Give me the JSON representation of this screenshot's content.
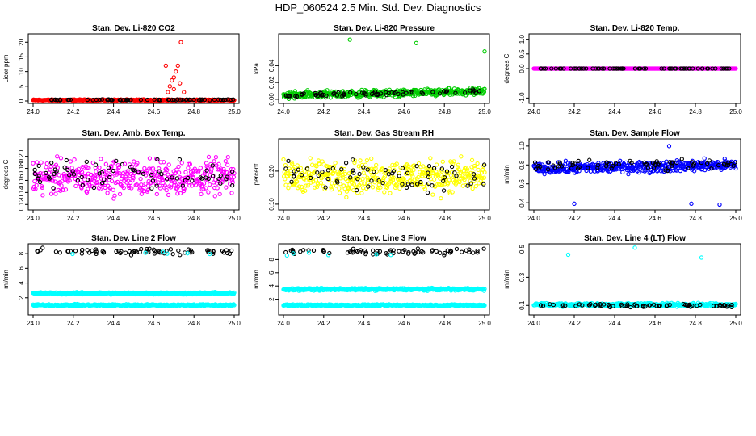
{
  "title": "HDP_060524  2.5 Min. Std. Dev. Diagnostics",
  "colors": {
    "black": "#000000",
    "red": "#ff0000",
    "green": "#00cc00",
    "magenta": "#ff00ff",
    "yellow": "#ffff00",
    "blue": "#0000ff",
    "cyan": "#00ffff"
  },
  "chart_data": [
    {
      "type": "scatter",
      "title": "Stan. Dev. Li-820 CO2",
      "ylabel": "Licor ppm",
      "xlim": [
        24.0,
        25.0
      ],
      "ylim": [
        0,
        22
      ],
      "xticks": [
        "24.0",
        "24.2",
        "24.4",
        "24.6",
        "24.8",
        "25.0"
      ],
      "yticks": [
        0,
        5,
        10,
        15,
        20
      ],
      "ytick_labels": [
        "0",
        "5",
        "10",
        "15",
        "20"
      ],
      "series": [
        {
          "color": "red",
          "base": 0.3,
          "noise": 0.15,
          "outliers": [
            [
              24.67,
              3
            ],
            [
              24.68,
              5
            ],
            [
              24.69,
              7
            ],
            [
              24.7,
              8
            ],
            [
              24.71,
              10
            ],
            [
              24.72,
              12
            ],
            [
              24.73,
              6
            ],
            [
              24.735,
              20
            ],
            [
              24.7,
              4
            ],
            [
              24.75,
              3
            ],
            [
              24.66,
              12
            ]
          ]
        },
        {
          "color": "black",
          "base": 0.4,
          "noise": 0.1,
          "sparse": true
        }
      ]
    },
    {
      "type": "scatter",
      "title": "Stan. Dev. Li-820 Pressure",
      "ylabel": "kPa",
      "xlim": [
        24.0,
        25.0
      ],
      "ylim": [
        -0.002,
        0.075
      ],
      "xticks": [
        "24.0",
        "24.2",
        "24.4",
        "24.6",
        "24.8",
        "25.0"
      ],
      "yticks": [
        0,
        0.02,
        0.04
      ],
      "ytick_labels": [
        "0.00",
        "0.02",
        "0.04"
      ],
      "series": [
        {
          "color": "green",
          "base": 0.005,
          "noise": 0.003,
          "trend": 0.004,
          "outliers": [
            [
              24.33,
              0.071
            ],
            [
              24.66,
              0.067
            ],
            [
              25.0,
              0.057
            ]
          ]
        },
        {
          "color": "black",
          "base": 0.005,
          "noise": 0.002,
          "trend": 0.004,
          "sparse": true
        }
      ]
    },
    {
      "type": "scatter",
      "title": "Stan. Dev. Li-820 Temp.",
      "ylabel": "degrees C",
      "xlim": [
        24.0,
        25.0
      ],
      "ylim": [
        -1.1,
        1.1
      ],
      "xticks": [
        "24.0",
        "24.2",
        "24.4",
        "24.6",
        "24.8",
        "25.0"
      ],
      "yticks": [
        -1,
        0,
        0.5,
        1
      ],
      "ytick_labels": [
        "-1.0",
        "0.0",
        "0.5",
        "1.0"
      ],
      "series": [
        {
          "color": "magenta",
          "base": 0,
          "noise": 0
        },
        {
          "color": "black",
          "base": 0,
          "noise": 0,
          "sparse": true
        }
      ]
    },
    {
      "type": "scatter",
      "title": "Stan. Dev. Amb. Box Temp.",
      "ylabel": "degrees C",
      "xlim": [
        24.0,
        25.0
      ],
      "ylim": [
        0.115,
        0.225
      ],
      "xticks": [
        "24.0",
        "24.2",
        "24.4",
        "24.6",
        "24.8",
        "25.0"
      ],
      "yticks": [
        0.12,
        0.14,
        0.16,
        0.18,
        0.2
      ],
      "ytick_labels": [
        "0.12",
        "0.14",
        "0.16",
        "0.18",
        "0.20"
      ],
      "series": [
        {
          "color": "magenta",
          "base": 0.165,
          "noise": 0.02
        },
        {
          "color": "black",
          "base": 0.17,
          "noise": 0.015,
          "sparse": true
        }
      ]
    },
    {
      "type": "scatter",
      "title": "Stan. Dev. Gas Stream RH",
      "ylabel": "percent",
      "xlim": [
        24.0,
        25.0
      ],
      "ylim": [
        0.09,
        0.29
      ],
      "xticks": [
        "24.0",
        "24.2",
        "24.4",
        "24.6",
        "24.8",
        "25.0"
      ],
      "yticks": [
        0.1,
        0.2
      ],
      "ytick_labels": [
        "0.10",
        "0.20"
      ],
      "series": [
        {
          "color": "yellow",
          "base": 0.185,
          "noise": 0.035
        },
        {
          "color": "black",
          "base": 0.18,
          "noise": 0.03,
          "sparse": true
        }
      ]
    },
    {
      "type": "scatter",
      "title": "Stan. Dev. Sample Flow",
      "ylabel": "ml/min",
      "xlim": [
        24.0,
        25.0
      ],
      "ylim": [
        0.35,
        1.05
      ],
      "xticks": [
        "24.0",
        "24.2",
        "24.4",
        "24.6",
        "24.8",
        "25.0"
      ],
      "yticks": [
        0.4,
        0.6,
        0.8,
        1.0
      ],
      "ytick_labels": [
        "0.4",
        "0.6",
        "0.8",
        "1.0"
      ],
      "series": [
        {
          "color": "blue",
          "base": 0.76,
          "noise": 0.04,
          "trend": 0.04,
          "outliers": [
            [
              24.2,
              0.39
            ],
            [
              24.67,
              1.0
            ],
            [
              24.78,
              0.39
            ],
            [
              24.92,
              0.38
            ]
          ]
        },
        {
          "color": "black",
          "base": 0.79,
          "noise": 0.04,
          "trend": 0.03,
          "sparse": true
        }
      ]
    },
    {
      "type": "scatter",
      "title": "Stan. Dev. Line 2 Flow",
      "ylabel": "ml/min",
      "xlim": [
        24.0,
        25.0
      ],
      "ylim": [
        0,
        9
      ],
      "xticks": [
        "24.0",
        "24.2",
        "24.4",
        "24.6",
        "24.8",
        "25.0"
      ],
      "yticks": [
        2,
        4,
        6,
        8
      ],
      "ytick_labels": [
        "2",
        "4",
        "6",
        "8"
      ],
      "series": [
        {
          "color": "cyan",
          "base": 2.6,
          "noise": 0.1
        },
        {
          "color": "cyan",
          "base": 1.0,
          "noise": 0.08
        },
        {
          "color": "black",
          "base": 8.3,
          "noise": 0.3,
          "sparse": true
        },
        {
          "color": "cyan",
          "base": 8.0,
          "noise": 0.3,
          "sparse": true,
          "few": true
        }
      ]
    },
    {
      "type": "scatter",
      "title": "Stan. Dev. Line 3 Flow",
      "ylabel": "ml/min",
      "xlim": [
        24.0,
        25.0
      ],
      "ylim": [
        0,
        10
      ],
      "xticks": [
        "24.0",
        "24.2",
        "24.4",
        "24.6",
        "24.8",
        "25.0"
      ],
      "yticks": [
        2,
        4,
        6,
        8
      ],
      "ytick_labels": [
        "2",
        "4",
        "6",
        "8"
      ],
      "series": [
        {
          "color": "cyan",
          "base": 3.5,
          "noise": 0.12
        },
        {
          "color": "cyan",
          "base": 1.1,
          "noise": 0.08
        },
        {
          "color": "black",
          "base": 9.2,
          "noise": 0.35,
          "sparse": true
        },
        {
          "color": "cyan",
          "base": 8.8,
          "noise": 0.3,
          "sparse": true,
          "few": true
        }
      ]
    },
    {
      "type": "scatter",
      "title": "Stan. Dev. Line 4 (LT) Flow",
      "ylabel": "ml/min",
      "xlim": [
        24.0,
        25.0
      ],
      "ylim": [
        0.05,
        0.52
      ],
      "xticks": [
        "24.0",
        "24.2",
        "24.4",
        "24.6",
        "24.8",
        "25.0"
      ],
      "yticks": [
        0.1,
        0.3,
        0.5
      ],
      "ytick_labels": [
        "0.1",
        "0.3",
        "0.5"
      ],
      "series": [
        {
          "color": "cyan",
          "base": 0.105,
          "noise": 0.008,
          "outliers": [
            [
              24.17,
              0.46
            ],
            [
              24.5,
              0.51
            ],
            [
              24.83,
              0.44
            ]
          ]
        },
        {
          "color": "black",
          "base": 0.1,
          "noise": 0.008,
          "sparse": true
        }
      ]
    }
  ]
}
